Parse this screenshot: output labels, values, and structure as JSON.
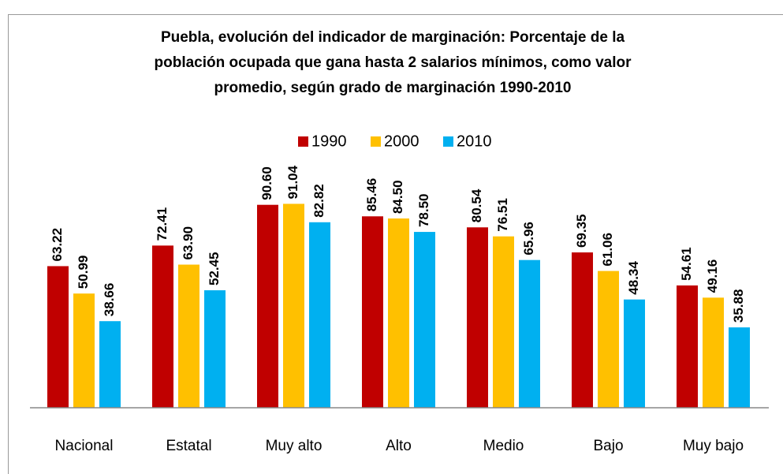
{
  "chart_data": {
    "type": "bar",
    "title": [
      "Puebla, evolución  del indicador de marginación:  Porcentaje de la",
      "población ocupada que gana hasta 2 salarios mínimos, como valor",
      "promedio, según grado de marginación  1990-2010"
    ],
    "categories": [
      "Nacional",
      "Estatal",
      "Muy alto",
      "Alto",
      "Medio",
      "Bajo",
      "Muy bajo"
    ],
    "series": [
      {
        "name": "1990",
        "color": "#c00000",
        "values": [
          63.22,
          72.41,
          90.6,
          85.46,
          80.54,
          69.35,
          54.61
        ],
        "value_labels": [
          "63.22",
          "72.41",
          "90.60",
          "85.46",
          "80.54",
          "69.35",
          "54.61"
        ]
      },
      {
        "name": "2000",
        "color": "#ffc000",
        "values": [
          50.99,
          63.9,
          91.04,
          84.5,
          76.51,
          61.06,
          49.16
        ],
        "value_labels": [
          "50.99",
          "63.90",
          "91.04",
          "84.50",
          "76.51",
          "61.06",
          "49.16"
        ]
      },
      {
        "name": "2010",
        "color": "#00b0f0",
        "values": [
          38.66,
          52.45,
          82.82,
          78.5,
          65.96,
          48.34,
          35.88
        ],
        "value_labels": [
          "38.66",
          "52.45",
          "82.82",
          "78.50",
          "65.96",
          "48.34",
          "35.88"
        ]
      }
    ],
    "ylim": [
      0,
      100
    ],
    "legend": "top"
  }
}
